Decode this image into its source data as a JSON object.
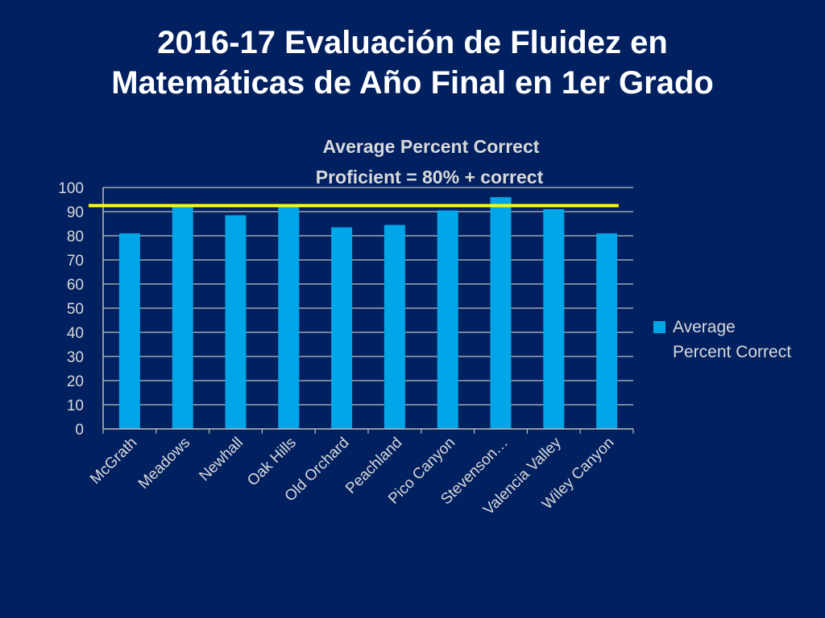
{
  "slide": {
    "title_line1": "2016-17 Evaluación de Fluidez en",
    "title_line2": "Matemáticas de Año Final en 1er Grado"
  },
  "colors": {
    "background": "#002060",
    "bar": "#00a6e8",
    "reference_line": "#ffff00",
    "text": "#d9d9d9"
  },
  "chart_data": {
    "type": "bar",
    "title_line1": "Average Percent Correct",
    "title_line2": "Proficient = 80% + correct",
    "categories": [
      "McGrath",
      "Meadows",
      "Newhall",
      "Oak Hills",
      "Old Orchard",
      "Peachland",
      "Pico Canyon",
      "Stevenson…",
      "Valencia Valley",
      "Wiley Canyon"
    ],
    "series": [
      {
        "name": "Average Percent Correct",
        "values": [
          81,
          92,
          88.5,
          93,
          83.5,
          84.5,
          90.5,
          96,
          91,
          81
        ]
      }
    ],
    "legend": {
      "line1": "Average",
      "line2": "Percent Correct",
      "position": "right"
    },
    "reference_line": 92.5,
    "ylim": [
      0,
      100
    ],
    "yticks": [
      0,
      10,
      20,
      30,
      40,
      50,
      60,
      70,
      80,
      90,
      100
    ],
    "grid": true
  }
}
